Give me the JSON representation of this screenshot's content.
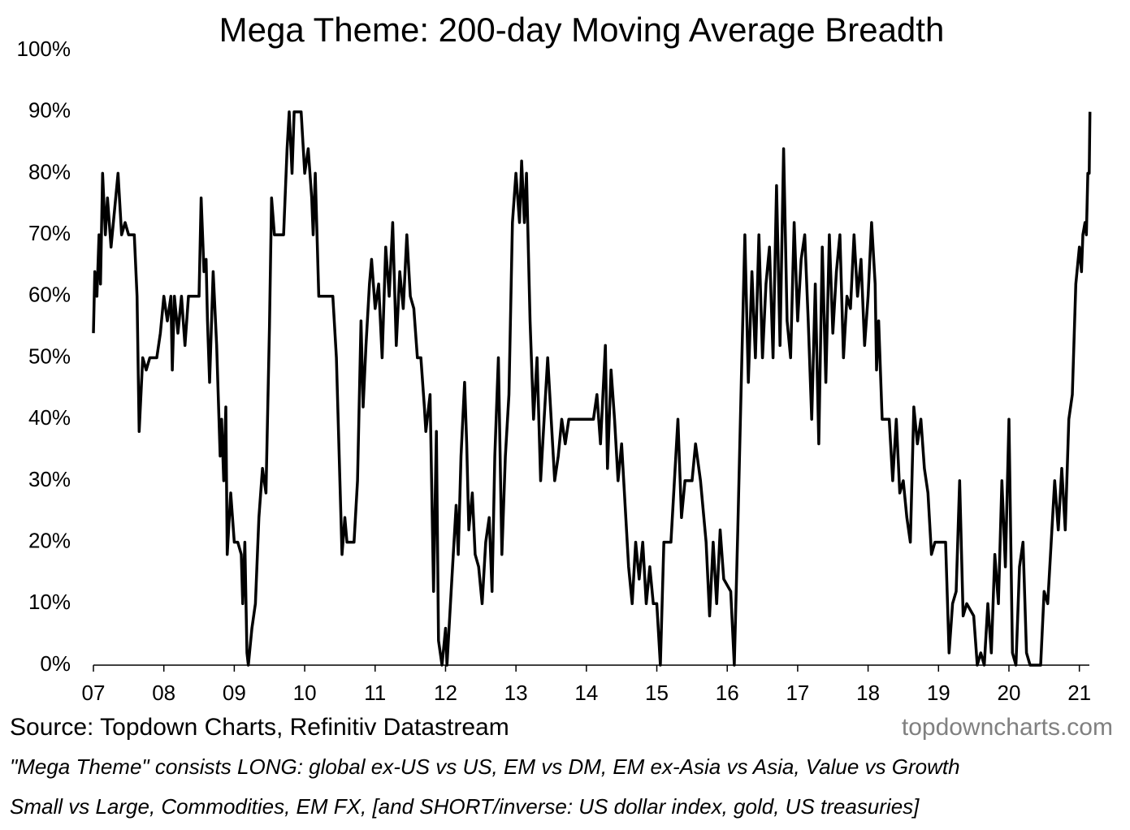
{
  "chart_data": {
    "type": "line",
    "title": "Mega Theme: 200-day Moving Average Breadth",
    "source": "Source: Topdown Charts, Refinitiv Datastream",
    "watermark": "topdowncharts.com",
    "notes": [
      "\"Mega Theme\" consists LONG: global ex-US vs US, EM vs DM, EM ex-Asia vs Asia, Value vs Growth",
      "Small vs Large, Commodities, EM FX, [and SHORT/inverse: US dollar index, gold, US treasuries]"
    ],
    "color": "#000000",
    "xlim": [
      2007,
      2021.2
    ],
    "xticks": [
      {
        "value": 2007,
        "label": "07"
      },
      {
        "value": 2008,
        "label": "08"
      },
      {
        "value": 2009,
        "label": "09"
      },
      {
        "value": 2010,
        "label": "10"
      },
      {
        "value": 2011,
        "label": "11"
      },
      {
        "value": 2012,
        "label": "12"
      },
      {
        "value": 2013,
        "label": "13"
      },
      {
        "value": 2014,
        "label": "14"
      },
      {
        "value": 2015,
        "label": "15"
      },
      {
        "value": 2016,
        "label": "16"
      },
      {
        "value": 2017,
        "label": "17"
      },
      {
        "value": 2018,
        "label": "18"
      },
      {
        "value": 2019,
        "label": "19"
      },
      {
        "value": 2020,
        "label": "20"
      },
      {
        "value": 2021,
        "label": "21"
      }
    ],
    "ylim": [
      0,
      100
    ],
    "yticks": [
      {
        "value": 0,
        "label": "0%"
      },
      {
        "value": 10,
        "label": "10%"
      },
      {
        "value": 20,
        "label": "20%"
      },
      {
        "value": 30,
        "label": "30%"
      },
      {
        "value": 40,
        "label": "40%"
      },
      {
        "value": 50,
        "label": "50%"
      },
      {
        "value": 60,
        "label": "60%"
      },
      {
        "value": 70,
        "label": "70%"
      },
      {
        "value": 80,
        "label": "80%"
      },
      {
        "value": 90,
        "label": "90%"
      },
      {
        "value": 100,
        "label": "100%"
      }
    ],
    "grid": false,
    "x": [
      2007.0,
      2007.02,
      2007.05,
      2007.08,
      2007.1,
      2007.13,
      2007.17,
      2007.2,
      2007.25,
      2007.3,
      2007.35,
      2007.4,
      2007.45,
      2007.5,
      2007.58,
      2007.62,
      2007.65,
      2007.7,
      2007.75,
      2007.8,
      2007.9,
      2007.95,
      2008.0,
      2008.05,
      2008.1,
      2008.12,
      2008.15,
      2008.2,
      2008.25,
      2008.3,
      2008.35,
      2008.45,
      2008.5,
      2008.53,
      2008.57,
      2008.6,
      2008.62,
      2008.65,
      2008.7,
      2008.75,
      2008.8,
      2008.82,
      2008.85,
      2008.88,
      2008.9,
      2008.95,
      2009.0,
      2009.05,
      2009.1,
      2009.12,
      2009.15,
      2009.18,
      2009.2,
      2009.25,
      2009.3,
      2009.35,
      2009.4,
      2009.45,
      2009.5,
      2009.53,
      2009.57,
      2009.7,
      2009.75,
      2009.78,
      2009.82,
      2009.85,
      2009.95,
      2010.0,
      2010.05,
      2010.1,
      2010.12,
      2010.15,
      2010.2,
      2010.3,
      2010.4,
      2010.45,
      2010.5,
      2010.53,
      2010.57,
      2010.6,
      2010.7,
      2010.75,
      2010.8,
      2010.83,
      2010.87,
      2010.92,
      2010.95,
      2011.0,
      2011.05,
      2011.1,
      2011.15,
      2011.2,
      2011.25,
      2011.3,
      2011.35,
      2011.4,
      2011.45,
      2011.5,
      2011.55,
      2011.6,
      2011.65,
      2011.7,
      2011.72,
      2011.78,
      2011.83,
      2011.87,
      2011.9,
      2011.95,
      2012.0,
      2012.02,
      2012.07,
      2012.1,
      2012.15,
      2012.18,
      2012.22,
      2012.27,
      2012.3,
      2012.33,
      2012.38,
      2012.42,
      2012.47,
      2012.52,
      2012.57,
      2012.62,
      2012.66,
      2012.7,
      2012.75,
      2012.8,
      2012.85,
      2012.9,
      2012.95,
      2013.0,
      2013.05,
      2013.08,
      2013.12,
      2013.15,
      2013.2,
      2013.25,
      2013.3,
      2013.35,
      2013.4,
      2013.45,
      2013.5,
      2013.55,
      2013.6,
      2013.65,
      2013.7,
      2013.75,
      2013.85,
      2014.0,
      2014.1,
      2014.15,
      2014.2,
      2014.27,
      2014.3,
      2014.35,
      2014.4,
      2014.45,
      2014.5,
      2014.6,
      2014.65,
      2014.7,
      2014.75,
      2014.8,
      2014.85,
      2014.9,
      2014.95,
      2015.0,
      2015.05,
      2015.1,
      2015.2,
      2015.25,
      2015.3,
      2015.35,
      2015.4,
      2015.5,
      2015.55,
      2015.62,
      2015.7,
      2015.75,
      2015.8,
      2015.85,
      2015.9,
      2015.95,
      2016.05,
      2016.1,
      2016.15,
      2016.2,
      2016.25,
      2016.3,
      2016.35,
      2016.4,
      2016.45,
      2016.5,
      2016.55,
      2016.6,
      2016.65,
      2016.7,
      2016.75,
      2016.8,
      2016.85,
      2016.9,
      2016.95,
      2017.0,
      2017.05,
      2017.1,
      2017.15,
      2017.2,
      2017.25,
      2017.3,
      2017.35,
      2017.4,
      2017.45,
      2017.5,
      2017.55,
      2017.6,
      2017.65,
      2017.7,
      2017.75,
      2017.8,
      2017.85,
      2017.9,
      2017.95,
      2018.0,
      2018.05,
      2018.1,
      2018.12,
      2018.15,
      2018.2,
      2018.3,
      2018.35,
      2018.4,
      2018.45,
      2018.5,
      2018.55,
      2018.6,
      2018.65,
      2018.7,
      2018.75,
      2018.8,
      2018.85,
      2018.9,
      2018.95,
      2019.0,
      2019.1,
      2019.15,
      2019.2,
      2019.25,
      2019.3,
      2019.35,
      2019.4,
      2019.5,
      2019.55,
      2019.6,
      2019.65,
      2019.7,
      2019.75,
      2019.8,
      2019.85,
      2019.9,
      2019.95,
      2020.0,
      2020.05,
      2020.1,
      2020.15,
      2020.2,
      2020.25,
      2020.3,
      2020.45,
      2020.5,
      2020.55,
      2020.6,
      2020.65,
      2020.7,
      2020.75,
      2020.8,
      2020.85,
      2020.9,
      2020.95,
      2021.0,
      2021.03,
      2021.05,
      2021.08,
      2021.1,
      2021.12,
      2021.14,
      2021.15
    ],
    "values": [
      54,
      64,
      60,
      70,
      62,
      80,
      70,
      76,
      68,
      74,
      80,
      70,
      72,
      70,
      70,
      60,
      38,
      50,
      48,
      50,
      50,
      54,
      60,
      56,
      60,
      48,
      60,
      54,
      60,
      52,
      60,
      60,
      60,
      76,
      64,
      66,
      56,
      46,
      64,
      52,
      34,
      40,
      30,
      42,
      18,
      28,
      20,
      20,
      18,
      10,
      20,
      2,
      0,
      6,
      10,
      24,
      32,
      28,
      55,
      76,
      70,
      70,
      84,
      90,
      80,
      90,
      90,
      80,
      84,
      76,
      70,
      80,
      60,
      60,
      60,
      50,
      30,
      18,
      24,
      20,
      20,
      30,
      56,
      42,
      52,
      62,
      66,
      58,
      62,
      50,
      68,
      60,
      72,
      52,
      64,
      58,
      70,
      60,
      58,
      50,
      50,
      42,
      38,
      44,
      12,
      38,
      4,
      0,
      6,
      0,
      10,
      16,
      26,
      18,
      34,
      46,
      36,
      22,
      28,
      18,
      16,
      10,
      20,
      24,
      12,
      34,
      50,
      18,
      34,
      44,
      72,
      80,
      72,
      82,
      72,
      80,
      56,
      40,
      50,
      30,
      40,
      50,
      40,
      30,
      34,
      40,
      36,
      40,
      40,
      40,
      40,
      44,
      36,
      52,
      32,
      48,
      40,
      30,
      36,
      16,
      10,
      20,
      14,
      20,
      10,
      16,
      10,
      10,
      0,
      20,
      20,
      30,
      40,
      24,
      30,
      30,
      36,
      30,
      20,
      8,
      20,
      10,
      22,
      14,
      12,
      0,
      22,
      46,
      70,
      46,
      64,
      50,
      70,
      50,
      62,
      68,
      50,
      78,
      52,
      84,
      56,
      50,
      72,
      56,
      66,
      70,
      56,
      40,
      62,
      36,
      68,
      46,
      70,
      54,
      64,
      70,
      50,
      60,
      58,
      70,
      60,
      66,
      52,
      60,
      72,
      62,
      48,
      56,
      40,
      40,
      30,
      40,
      28,
      30,
      24,
      20,
      42,
      36,
      40,
      32,
      28,
      18,
      20,
      20,
      20,
      2,
      10,
      12,
      30,
      8,
      10,
      8,
      0,
      2,
      0,
      10,
      2,
      18,
      10,
      30,
      16,
      40,
      2,
      0,
      16,
      20,
      2,
      0,
      0,
      12,
      10,
      20,
      30,
      22,
      32,
      22,
      40,
      44,
      62,
      68,
      64,
      70,
      72,
      70,
      80,
      80,
      90
    ]
  }
}
